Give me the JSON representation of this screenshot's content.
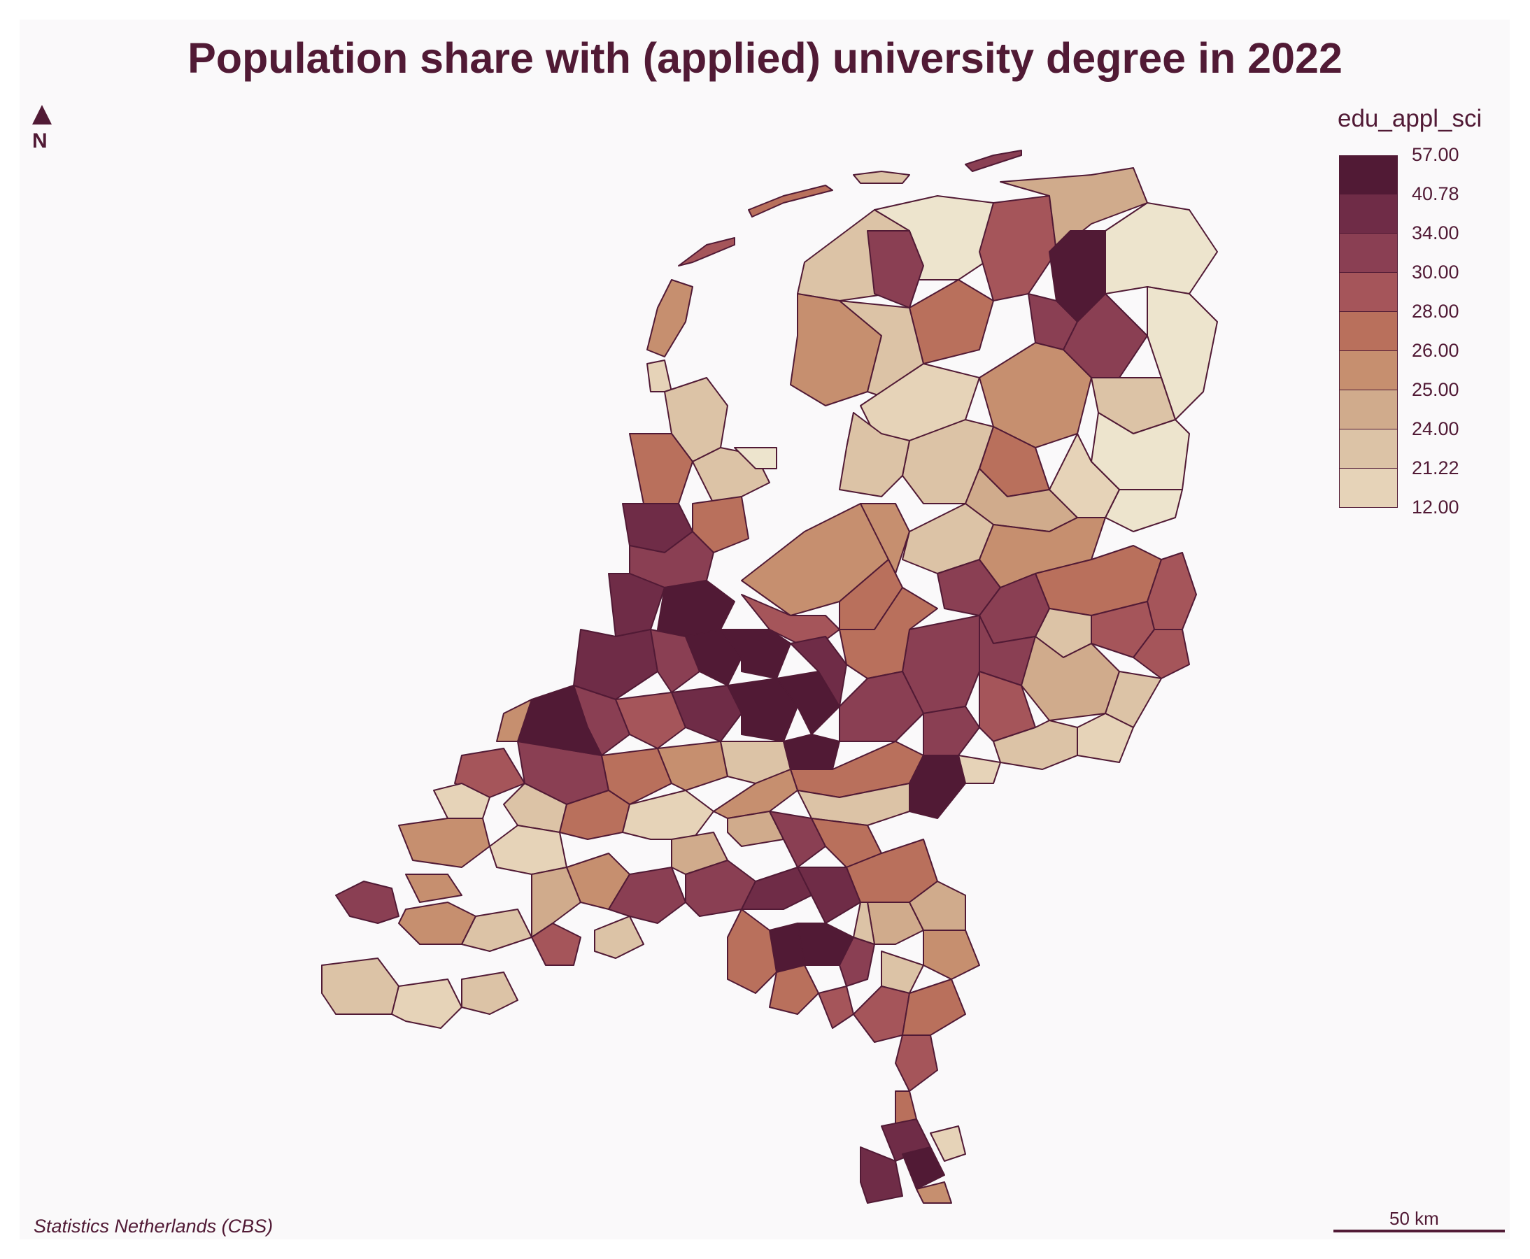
{
  "title": "Population share with (applied) university degree in 2022",
  "north_arrow": {
    "label": "N"
  },
  "legend": {
    "title": "edu_appl_sci",
    "breaks": [
      "57.00",
      "40.78",
      "34.00",
      "30.00",
      "28.00",
      "26.00",
      "25.00",
      "24.00",
      "21.22",
      "12.00"
    ],
    "colors": [
      "#511a35",
      "#6f2c47",
      "#8a3f53",
      "#a5555a",
      "#b9705c",
      "#c68f6f",
      "#d0ab8c",
      "#dcc3a6",
      "#e6d3b8",
      "#ede4cd"
    ]
  },
  "credit": "Statistics Netherlands (CBS)",
  "scale_bar": {
    "label": "50 km"
  },
  "colors": {
    "outline": "#511a35",
    "background": "#faf9fa",
    "water": "#faf9fa"
  }
}
